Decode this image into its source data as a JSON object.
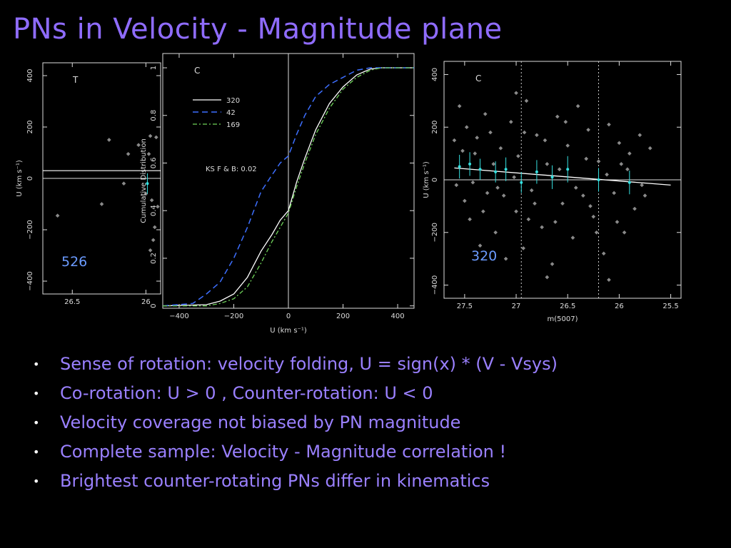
{
  "slide": {
    "title": "PNs in Velocity - Magnitude plane",
    "bullets": [
      "Sense of rotation: velocity folding, U = sign(x) * (V - Vsys)",
      "Co-rotation: U > 0 , Counter-rotation: U < 0",
      "Velocity coverage not biased by PN magnitude",
      "Complete sample: Velocity - Magnitude correlation !",
      "Brightest counter-rotating PNs differ in kinematics"
    ]
  },
  "colors": {
    "title": "#8f6cff",
    "bullet_text": "#9a80ff",
    "panel_number": "#6b9bff",
    "line320": "#ffffff",
    "line42": "#3d6fff",
    "line169": "#6fd35a",
    "errorbars": "#35e0e0",
    "points": "#8a8a8a"
  },
  "chart_data": [
    {
      "type": "scatter",
      "panel_letter": "T",
      "panel_number": "526",
      "ylabel": "U (km s⁻¹)",
      "xlabel": "",
      "xlim": [
        26.7,
        25.9
      ],
      "ylim": [
        -450,
        450
      ],
      "xticks": [
        "26.5",
        "26"
      ],
      "yticks": [
        "400",
        "200",
        "0",
        "−200",
        "−400"
      ],
      "ytick_values": [
        400,
        200,
        0,
        -200,
        -400
      ],
      "fit_line": [
        [
          26.7,
          30
        ],
        [
          25.9,
          30
        ]
      ],
      "points": [
        [
          26.25,
          150
        ],
        [
          26.12,
          95
        ],
        [
          26.05,
          130
        ],
        [
          25.97,
          165
        ],
        [
          25.93,
          160
        ],
        [
          25.98,
          95
        ],
        [
          26.0,
          -60
        ],
        [
          25.96,
          -85
        ],
        [
          26.15,
          -20
        ],
        [
          26.3,
          -100
        ],
        [
          26.6,
          -145
        ],
        [
          25.95,
          -240
        ],
        [
          25.97,
          -280
        ],
        [
          25.94,
          -190
        ],
        [
          25.92,
          -110
        ]
      ],
      "errorbars": [
        [
          25.99,
          -20,
          40
        ]
      ]
    },
    {
      "type": "line",
      "panel_letter": "C",
      "xlabel": "U (km s⁻¹)",
      "ylabel": "Cumulative Distribution",
      "xlim": [
        -460,
        460
      ],
      "ylim": [
        0,
        1
      ],
      "xticks": [
        "−400",
        "−200",
        "0",
        "200",
        "400"
      ],
      "xtick_values": [
        -400,
        -200,
        0,
        200,
        400
      ],
      "yticks": [
        "0",
        "0.2",
        "0.4",
        "0.6",
        "0.8",
        "1"
      ],
      "ytick_values": [
        0,
        0.2,
        0.4,
        0.6,
        0.8,
        1
      ],
      "annotation": "KS F & B: 0.02",
      "series": [
        {
          "name": "320",
          "x": [
            -460,
            -300,
            -250,
            -200,
            -150,
            -100,
            -60,
            -30,
            0,
            30,
            60,
            100,
            150,
            200,
            250,
            300,
            340,
            460
          ],
          "values": [
            0,
            0.005,
            0.02,
            0.05,
            0.12,
            0.23,
            0.3,
            0.36,
            0.4,
            0.52,
            0.62,
            0.74,
            0.85,
            0.92,
            0.97,
            0.995,
            1,
            1
          ]
        },
        {
          "name": "42",
          "x": [
            -460,
            -350,
            -300,
            -250,
            -200,
            -150,
            -100,
            -60,
            -30,
            0,
            30,
            60,
            100,
            150,
            200,
            250,
            300,
            460
          ],
          "values": [
            0,
            0.01,
            0.05,
            0.1,
            0.2,
            0.33,
            0.48,
            0.55,
            0.6,
            0.63,
            0.72,
            0.8,
            0.88,
            0.93,
            0.96,
            0.99,
            1,
            1
          ]
        },
        {
          "name": "169",
          "x": [
            -460,
            -300,
            -250,
            -200,
            -150,
            -100,
            -60,
            -30,
            0,
            30,
            60,
            100,
            150,
            200,
            250,
            300,
            340,
            460
          ],
          "values": [
            0,
            0,
            0.01,
            0.03,
            0.08,
            0.18,
            0.27,
            0.33,
            0.39,
            0.5,
            0.6,
            0.72,
            0.83,
            0.91,
            0.96,
            0.99,
            1,
            1
          ]
        }
      ]
    },
    {
      "type": "scatter",
      "panel_letter": "C",
      "panel_number": "320",
      "xlabel": "m(5007)",
      "ylabel": "U (km s⁻¹)",
      "xlim": [
        27.7,
        25.4
      ],
      "ylim": [
        -450,
        450
      ],
      "xticks": [
        "27.5",
        "27",
        "26.5",
        "26",
        "25.5"
      ],
      "xtick_values": [
        27.5,
        27,
        26.5,
        26,
        25.5
      ],
      "yticks": [
        "400",
        "200",
        "0",
        "−200",
        "−400"
      ],
      "ytick_values": [
        400,
        200,
        0,
        -200,
        -400
      ],
      "dotted_vlines": [
        26.95,
        26.2
      ],
      "fit_line": [
        [
          27.6,
          45
        ],
        [
          25.5,
          -20
        ]
      ],
      "errorbars": [
        [
          27.55,
          50,
          45
        ],
        [
          27.45,
          60,
          45
        ],
        [
          27.35,
          40,
          40
        ],
        [
          27.2,
          30,
          40
        ],
        [
          27.1,
          40,
          45
        ],
        [
          26.95,
          -10,
          40
        ],
        [
          26.8,
          30,
          45
        ],
        [
          26.65,
          10,
          45
        ],
        [
          26.5,
          40,
          50
        ],
        [
          26.2,
          0,
          45
        ],
        [
          25.9,
          -10,
          45
        ]
      ],
      "points": [
        [
          27.6,
          150
        ],
        [
          27.55,
          280
        ],
        [
          27.5,
          -80
        ],
        [
          27.48,
          200
        ],
        [
          27.45,
          -150
        ],
        [
          27.4,
          100
        ],
        [
          27.35,
          -250
        ],
        [
          27.3,
          250
        ],
        [
          27.28,
          -50
        ],
        [
          27.25,
          180
        ],
        [
          27.2,
          -200
        ],
        [
          27.15,
          120
        ],
        [
          27.1,
          -300
        ],
        [
          27.05,
          220
        ],
        [
          27.0,
          -120
        ],
        [
          26.98,
          90
        ],
        [
          26.93,
          -260
        ],
        [
          26.9,
          300
        ],
        [
          26.85,
          -40
        ],
        [
          26.8,
          170
        ],
        [
          26.75,
          -180
        ],
        [
          26.7,
          60
        ],
        [
          26.65,
          -320
        ],
        [
          26.6,
          240
        ],
        [
          26.55,
          -90
        ],
        [
          26.5,
          130
        ],
        [
          26.45,
          -220
        ],
        [
          26.4,
          280
        ],
        [
          26.35,
          -60
        ],
        [
          26.3,
          190
        ],
        [
          26.25,
          -140
        ],
        [
          26.2,
          70
        ],
        [
          26.15,
          -280
        ],
        [
          26.1,
          210
        ],
        [
          26.05,
          -50
        ],
        [
          26.0,
          140
        ],
        [
          25.95,
          -200
        ],
        [
          25.9,
          100
        ],
        [
          25.85,
          -110
        ],
        [
          25.8,
          170
        ],
        [
          25.75,
          -60
        ],
        [
          25.7,
          120
        ],
        [
          27.58,
          -20
        ],
        [
          27.42,
          -10
        ],
        [
          27.32,
          -120
        ],
        [
          27.22,
          60
        ],
        [
          27.12,
          -60
        ],
        [
          27.02,
          10
        ],
        [
          26.92,
          180
        ],
        [
          26.82,
          -90
        ],
        [
          26.72,
          150
        ],
        [
          26.62,
          -160
        ],
        [
          26.52,
          220
        ],
        [
          26.42,
          -30
        ],
        [
          26.32,
          80
        ],
        [
          26.22,
          -200
        ],
        [
          26.12,
          20
        ],
        [
          26.02,
          -160
        ],
        [
          25.92,
          40
        ],
        [
          27.52,
          110
        ],
        [
          27.38,
          160
        ],
        [
          27.18,
          -30
        ],
        [
          26.88,
          -150
        ],
        [
          26.58,
          40
        ],
        [
          26.28,
          -100
        ],
        [
          25.98,
          60
        ],
        [
          25.78,
          -20
        ],
        [
          26.7,
          -370
        ],
        [
          26.1,
          -380
        ],
        [
          27.0,
          330
        ]
      ]
    }
  ]
}
